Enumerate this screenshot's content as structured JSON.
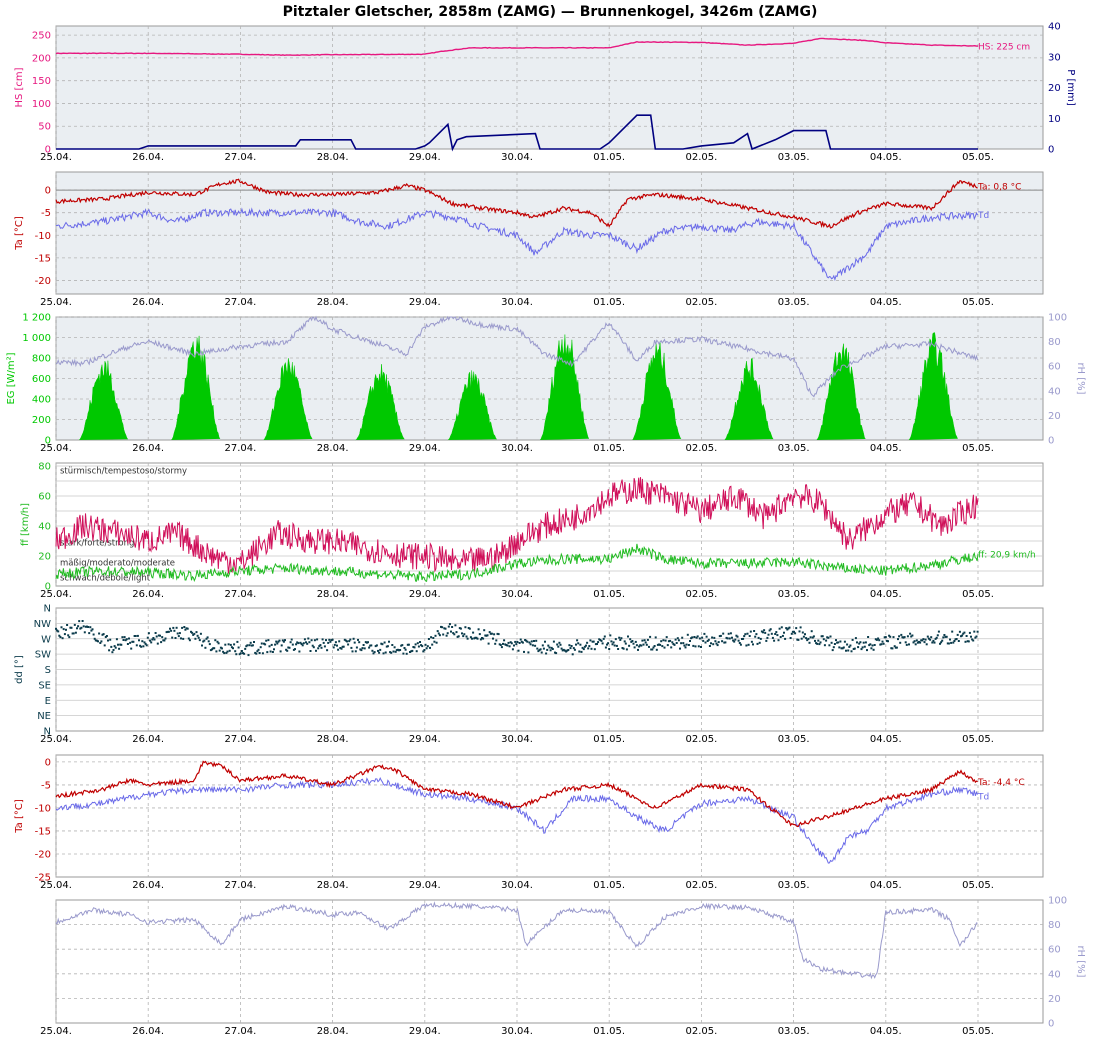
{
  "title": "Pitztaler Gletscher, 2858m (ZAMG) — Brunnenkogel, 3426m (ZAMG)",
  "x_ticks": [
    "25.04.",
    "26.04.",
    "27.04.",
    "28.04.",
    "29.04.",
    "30.04.",
    "01.05.",
    "02.05.",
    "03.05.",
    "04.05.",
    "05.05."
  ],
  "colors": {
    "hs": "#e6177f",
    "p": "#000080",
    "ta": "#c00000",
    "td": "#6a6ae8",
    "eg": "#00c800",
    "rh": "#9a9acc",
    "ff": "#d0105a",
    "ff2": "#22bb22",
    "dd": "#0b3b4b",
    "bg": "#eaeef2",
    "grid": "#b4b4b4"
  },
  "chart_data": [
    {
      "type": "area",
      "ylabel_left": "HS [cm]",
      "ylabel_right": "P [mm]",
      "ylim_left": [
        0,
        270
      ],
      "ylim_right": [
        0,
        40
      ],
      "yticks_left": [
        "0",
        "50",
        "100",
        "150",
        "200",
        "250"
      ],
      "yticks_right": [
        "0",
        "10",
        "20",
        "30",
        "40"
      ],
      "annotation": "HS: 225 cm",
      "series": [
        {
          "name": "HS",
          "axis": "left",
          "x": [
            0,
            1,
            2,
            2.5,
            3,
            4,
            4.2,
            4.5,
            5,
            6,
            6.3,
            7,
            7.5,
            8,
            8.3,
            8.8,
            9,
            9.5,
            10
          ],
          "values": [
            210,
            210,
            208,
            206,
            207,
            208,
            215,
            222,
            222,
            222,
            235,
            234,
            228,
            232,
            243,
            238,
            233,
            228,
            226
          ]
        },
        {
          "name": "P",
          "axis": "right",
          "x": [
            0,
            0.9,
            1.0,
            1.4,
            2.0,
            2.6,
            2.65,
            3.2,
            3.25,
            3.9,
            4.0,
            4.05,
            4.25,
            4.3,
            4.35,
            4.45,
            5.2,
            5.25,
            5.9,
            6.0,
            6.3,
            6.45,
            6.5,
            6.8,
            7.0,
            7.35,
            7.5,
            7.55,
            7.8,
            8.0,
            8.35,
            8.4,
            10
          ],
          "values": [
            0,
            0,
            1,
            1,
            1,
            1,
            3,
            3,
            0,
            0,
            1,
            2,
            8,
            0,
            3,
            4,
            5,
            0,
            0,
            2,
            11,
            11,
            0,
            0,
            1,
            2,
            5,
            0,
            3,
            6,
            6,
            0,
            0
          ]
        }
      ]
    },
    {
      "type": "line",
      "ylabel": "Ta [°C]",
      "ylim": [
        -23,
        4
      ],
      "yticks": [
        "-20",
        "-15",
        "-10",
        "-5",
        "0"
      ],
      "annotation_ta": "Ta: 0,8 °C",
      "annotation_td": "Td",
      "series": [
        {
          "name": "Ta",
          "x": [
            0,
            0.5,
            1,
            1.5,
            1.8,
            2,
            2.3,
            2.6,
            3,
            3.5,
            3.8,
            4,
            4.3,
            4.6,
            5,
            5.2,
            5.5,
            5.8,
            6,
            6.2,
            6.5,
            7,
            7.5,
            8,
            8.4,
            8.7,
            9,
            9.5,
            9.8,
            10
          ],
          "values": [
            -2.5,
            -2,
            -0.5,
            -1,
            1.5,
            2,
            -0.5,
            -1,
            -1,
            -0.5,
            1,
            0,
            -3,
            -4,
            -5,
            -6,
            -4,
            -5,
            -8,
            -2,
            -1,
            -2,
            -4,
            -6,
            -8,
            -5,
            -3,
            -4,
            2,
            0.8
          ]
        },
        {
          "name": "Td",
          "x": [
            0,
            0.5,
            1,
            1.3,
            1.6,
            2,
            2.5,
            3,
            3.3,
            3.6,
            4,
            4.3,
            4.6,
            5,
            5.2,
            5.5,
            5.8,
            6,
            6.3,
            6.6,
            7,
            7.3,
            7.6,
            8,
            8.2,
            8.4,
            8.6,
            8.8,
            9,
            9.5,
            10
          ],
          "values": [
            -8,
            -7,
            -5,
            -7,
            -5,
            -5,
            -5,
            -5,
            -7,
            -8,
            -5,
            -6,
            -8,
            -10,
            -14,
            -9,
            -10,
            -10,
            -13,
            -9,
            -8,
            -9,
            -7,
            -8,
            -14,
            -20,
            -17,
            -14,
            -8,
            -6,
            -5.5
          ]
        }
      ]
    },
    {
      "type": "area",
      "ylabel_left": "EG [W/m²]",
      "ylabel_right": "rH [%]",
      "ylim_left": [
        0,
        1200
      ],
      "ylim_right": [
        0,
        100
      ],
      "yticks_left": [
        "0",
        "200",
        "400",
        "600",
        "800",
        "1 000",
        "1 200"
      ],
      "yticks_right": [
        "0",
        "20",
        "40",
        "60",
        "80",
        "100"
      ],
      "eg_peaks": [
        820,
        1100,
        850,
        750,
        700,
        1150,
        1000,
        820,
        1020,
        1060
      ],
      "series": [
        {
          "name": "rH",
          "x": [
            0,
            0.3,
            0.5,
            0.8,
            1,
            1.5,
            2,
            2.5,
            2.8,
            3,
            3.5,
            3.8,
            4,
            4.3,
            4.6,
            5,
            5.3,
            5.6,
            6,
            6.3,
            6.5,
            7,
            7.5,
            8,
            8.2,
            8.5,
            9,
            9.5,
            10
          ],
          "values": [
            64,
            62,
            68,
            76,
            80,
            70,
            76,
            80,
            100,
            90,
            78,
            70,
            92,
            100,
            94,
            90,
            70,
            62,
            96,
            64,
            80,
            82,
            74,
            66,
            36,
            58,
            76,
            78,
            66
          ]
        }
      ]
    },
    {
      "type": "line",
      "ylabel": "ff [km/h]",
      "ylim": [
        0,
        82
      ],
      "yticks": [
        "0",
        "20",
        "40",
        "60",
        "80"
      ],
      "bands": [
        "stürmisch/tempestoso/stormy",
        "stark/forte/strong",
        "mäßig/moderato/moderate",
        "schwach/debole/light"
      ],
      "annotation": "ff: 20,9 km/h",
      "series": [
        {
          "name": "ff_gust",
          "x": [
            0,
            0.3,
            0.7,
            1,
            1.3,
            1.7,
            2,
            2.4,
            2.8,
            3,
            3.4,
            3.8,
            4,
            4.4,
            4.8,
            5,
            5.3,
            5.6,
            6,
            6.3,
            6.6,
            7,
            7.4,
            7.7,
            8,
            8.3,
            8.6,
            9,
            9.3,
            9.6,
            10
          ],
          "values": [
            30,
            40,
            35,
            30,
            35,
            20,
            15,
            35,
            30,
            30,
            25,
            20,
            20,
            15,
            20,
            30,
            40,
            45,
            60,
            65,
            60,
            50,
            60,
            45,
            62,
            55,
            30,
            48,
            55,
            40,
            55
          ]
        },
        {
          "name": "ff",
          "x": [
            0,
            0.5,
            1,
            1.5,
            2,
            2.5,
            3,
            3.5,
            4,
            4.5,
            5,
            5.5,
            6,
            6.3,
            6.6,
            7,
            7.5,
            8,
            8.5,
            9,
            9.5,
            10
          ],
          "values": [
            8,
            10,
            9,
            7,
            10,
            12,
            10,
            8,
            6,
            8,
            15,
            18,
            18,
            25,
            18,
            15,
            15,
            16,
            12,
            10,
            14,
            20
          ]
        }
      ]
    },
    {
      "type": "scatter",
      "ylabel": "dd [°]",
      "yticks": [
        "N",
        "NE",
        "E",
        "SE",
        "S",
        "SW",
        "W",
        "NW",
        "N"
      ],
      "series": [
        {
          "name": "dd",
          "x": [
            0,
            0.3,
            0.6,
            1,
            1.4,
            1.7,
            2,
            2.5,
            3,
            3.5,
            4,
            4.2,
            4.6,
            5,
            5.5,
            6,
            6.5,
            7,
            7.5,
            8,
            8.5,
            9,
            9.5,
            10
          ],
          "values": [
            280,
            310,
            250,
            270,
            290,
            250,
            240,
            250,
            255,
            245,
            240,
            300,
            280,
            250,
            240,
            260,
            255,
            265,
            270,
            290,
            250,
            260,
            270,
            280
          ]
        }
      ]
    },
    {
      "type": "line",
      "ylabel": "Ta [°C]",
      "ylim": [
        -25,
        1.5
      ],
      "yticks": [
        "-25",
        "-20",
        "-15",
        "-10",
        "-5",
        "0"
      ],
      "annotation_ta": "Ta: -4,4 °C",
      "annotation_td": "Td",
      "series": [
        {
          "name": "Ta",
          "x": [
            0,
            0.5,
            0.8,
            1,
            1.5,
            1.6,
            1.8,
            2,
            2.5,
            3,
            3.5,
            3.7,
            4,
            4.5,
            5,
            5.5,
            6,
            6.5,
            7,
            7.5,
            8,
            8.5,
            9,
            9.5,
            9.8,
            10
          ],
          "values": [
            -7.5,
            -6,
            -4,
            -5,
            -4,
            0,
            -1,
            -4,
            -3,
            -5,
            -1,
            -2,
            -6,
            -7,
            -10,
            -6,
            -5,
            -10,
            -5,
            -6,
            -14,
            -11,
            -8,
            -6,
            -2,
            -4.4
          ]
        },
        {
          "name": "Td",
          "x": [
            0,
            0.5,
            1,
            1.5,
            2,
            2.5,
            3,
            3.5,
            4,
            4.5,
            5,
            5.3,
            5.6,
            6,
            6.3,
            6.6,
            7,
            7.5,
            8,
            8.2,
            8.4,
            8.6,
            8.8,
            9,
            9.5,
            9.8,
            10
          ],
          "values": [
            -10,
            -9,
            -7,
            -6,
            -6,
            -5,
            -5,
            -4,
            -7,
            -8,
            -10,
            -15,
            -8,
            -8,
            -12,
            -15,
            -9,
            -8,
            -12,
            -18,
            -22,
            -16,
            -15,
            -10,
            -7,
            -6,
            -7
          ]
        }
      ]
    },
    {
      "type": "line",
      "ylabel_right": "rH [%]",
      "ylim": [
        0,
        100
      ],
      "yticks_right": [
        "0",
        "20",
        "40",
        "60",
        "80",
        "100"
      ],
      "series": [
        {
          "name": "rH",
          "x": [
            0,
            0.4,
            0.8,
            1,
            1.5,
            1.8,
            2,
            2.5,
            3,
            3.3,
            3.6,
            4,
            4.5,
            5,
            5.1,
            5.5,
            6,
            6.3,
            6.6,
            7,
            7.5,
            8,
            8.1,
            8.3,
            8.6,
            8.9,
            9,
            9.5,
            9.7,
            9.8,
            10
          ],
          "values": [
            82,
            92,
            88,
            82,
            84,
            64,
            84,
            95,
            88,
            90,
            76,
            96,
            95,
            92,
            64,
            92,
            90,
            62,
            86,
            95,
            94,
            82,
            52,
            44,
            40,
            38,
            90,
            92,
            84,
            62,
            82
          ]
        }
      ]
    }
  ]
}
